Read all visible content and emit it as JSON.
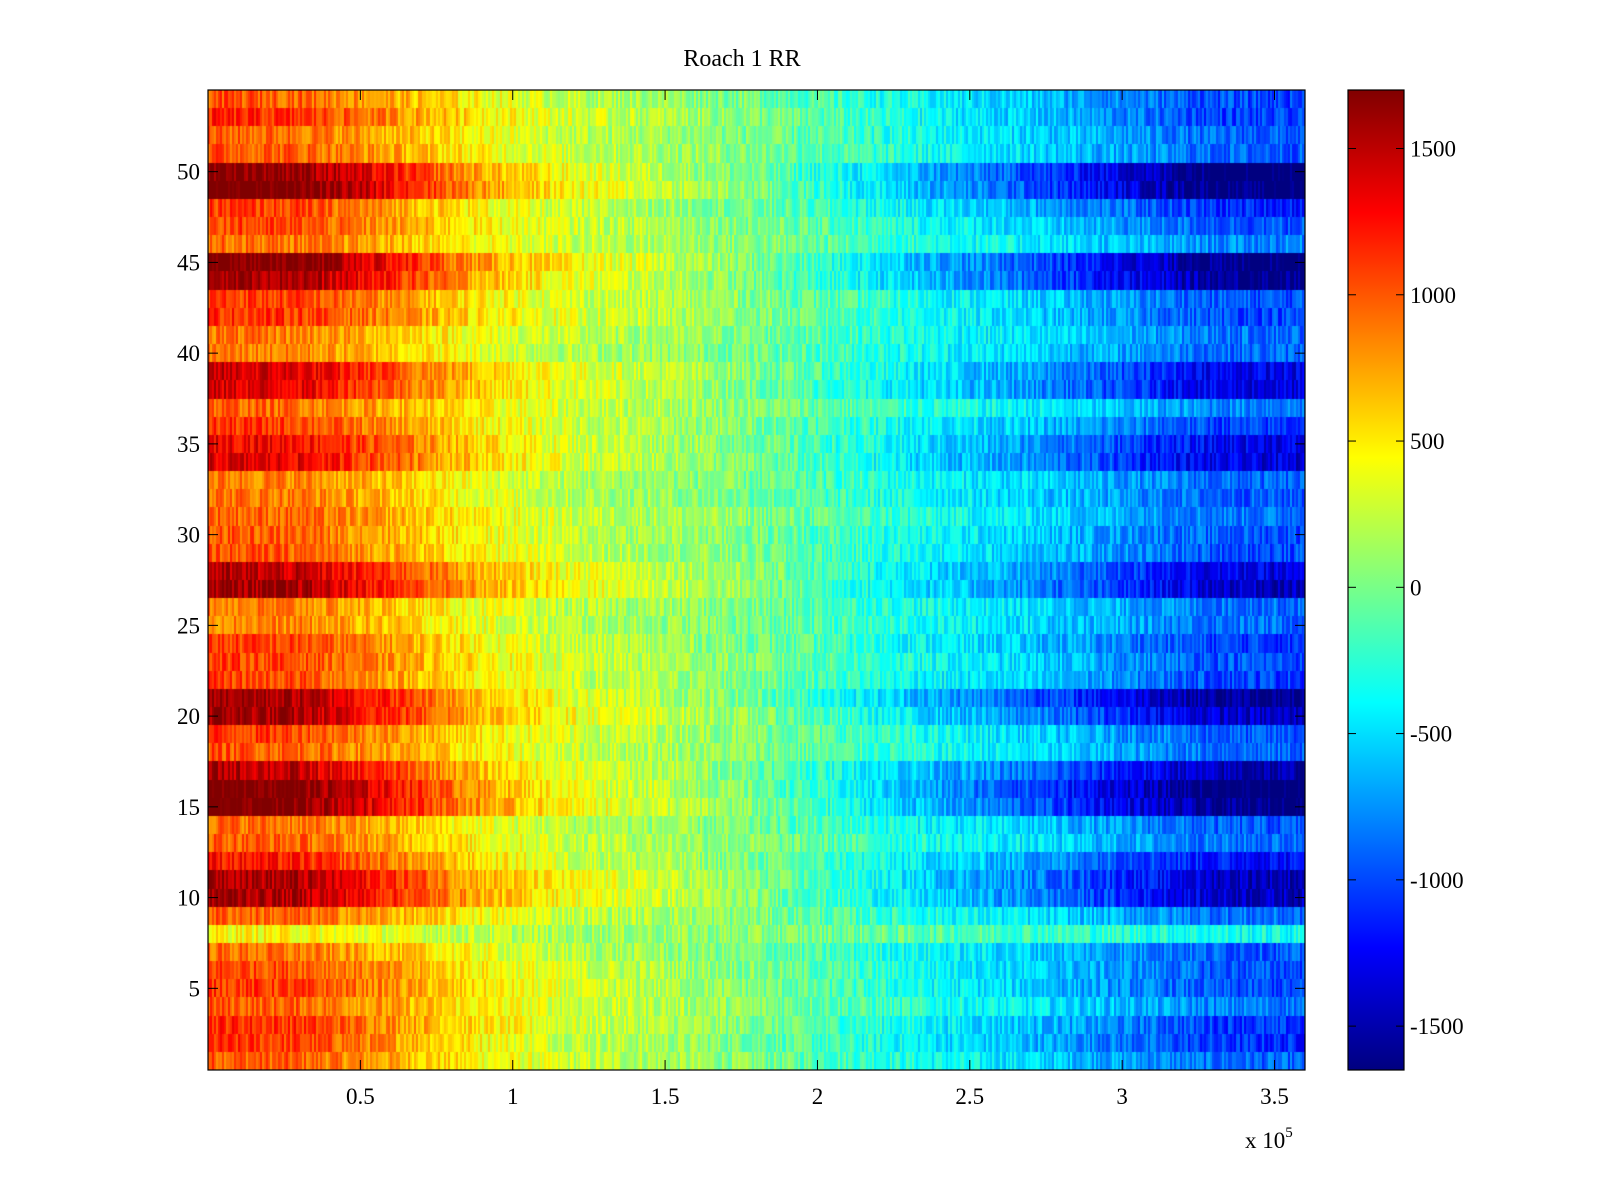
{
  "chart_data": {
    "type": "heatmap",
    "title": "Roach 1 RR",
    "xlabel": "",
    "ylabel": "",
    "x_multiplier_label": {
      "base": "x 10",
      "exponent": "5"
    },
    "xlim": [
      0,
      3.6
    ],
    "ylim": [
      0.5,
      54.5
    ],
    "x_ticks": [
      0.5,
      1,
      1.5,
      2,
      2.5,
      3,
      3.5
    ],
    "x_tick_labels": [
      "0.5",
      "1",
      "1.5",
      "2",
      "2.5",
      "3",
      "3.5"
    ],
    "y_ticks": [
      5,
      10,
      15,
      20,
      25,
      30,
      35,
      40,
      45,
      50
    ],
    "y_tick_labels": [
      "5",
      "10",
      "15",
      "20",
      "25",
      "30",
      "35",
      "40",
      "45",
      "50"
    ],
    "rows": 54,
    "colormap": "jet",
    "clim": [
      -1650,
      1700
    ],
    "colorbar": {
      "ticks": [
        1500,
        1000,
        500,
        0,
        -500,
        -1000,
        -1500
      ],
      "tick_labels": [
        "1500",
        "1000",
        "500",
        "0",
        "-500",
        "-1000",
        "-1500"
      ]
    },
    "trend_profile": [
      {
        "x": 0.0,
        "value": 1050
      },
      {
        "x": 0.3,
        "value": 1000
      },
      {
        "x": 0.6,
        "value": 750
      },
      {
        "x": 0.9,
        "value": 450
      },
      {
        "x": 1.2,
        "value": 250
      },
      {
        "x": 1.5,
        "value": 150
      },
      {
        "x": 1.8,
        "value": 0
      },
      {
        "x": 2.1,
        "value": -200
      },
      {
        "x": 2.4,
        "value": -400
      },
      {
        "x": 2.7,
        "value": -550
      },
      {
        "x": 3.0,
        "value": -750
      },
      {
        "x": 3.3,
        "value": -950
      },
      {
        "x": 3.6,
        "value": -1000
      }
    ],
    "row_strength": [
      {
        "row": 3,
        "strength": 1.1
      },
      {
        "row": 4,
        "strength": 0.9
      },
      {
        "row": 8,
        "strength": 0.4
      },
      {
        "row": 10,
        "strength": 1.5
      },
      {
        "row": 11,
        "strength": 1.5
      },
      {
        "row": 12,
        "strength": 1.2
      },
      {
        "row": 15,
        "strength": 1.7
      },
      {
        "row": 16,
        "strength": 1.75
      },
      {
        "row": 17,
        "strength": 1.5
      },
      {
        "row": 20,
        "strength": 1.5
      },
      {
        "row": 21,
        "strength": 1.6
      },
      {
        "row": 27,
        "strength": 1.5
      },
      {
        "row": 28,
        "strength": 1.4
      },
      {
        "row": 34,
        "strength": 1.35
      },
      {
        "row": 35,
        "strength": 1.3
      },
      {
        "row": 38,
        "strength": 1.35
      },
      {
        "row": 39,
        "strength": 1.35
      },
      {
        "row": 44,
        "strength": 1.6
      },
      {
        "row": 45,
        "strength": 1.7
      },
      {
        "row": 49,
        "strength": 1.75
      },
      {
        "row": 50,
        "strength": 1.7
      }
    ]
  }
}
